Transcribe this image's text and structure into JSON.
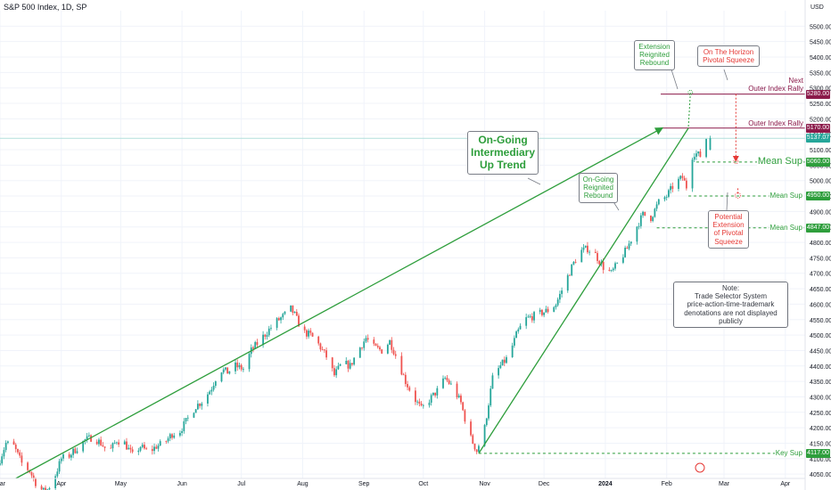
{
  "chart_data": {
    "type": "candlestick",
    "title": "S&P 500 Index, 1D, SP",
    "currency_label": "USD",
    "y_ticks": [
      4050,
      4100,
      4150,
      4200,
      4250,
      4300,
      4350,
      4400,
      4450,
      4500,
      4550,
      4600,
      4650,
      4700,
      4750,
      4800,
      4850,
      4900,
      4950,
      5000,
      5050,
      5100,
      5150,
      5200,
      5250,
      5300,
      5350,
      5400,
      5450,
      5500
    ],
    "ylim": [
      4036,
      5550
    ],
    "x_range_days": [
      0,
      407
    ],
    "x_labels": [
      {
        "label": "Mar",
        "day": 0
      },
      {
        "label": "Apr",
        "day": 31
      },
      {
        "label": "May",
        "day": 61
      },
      {
        "label": "Jun",
        "day": 92
      },
      {
        "label": "Jul",
        "day": 122
      },
      {
        "label": "Aug",
        "day": 153
      },
      {
        "label": "Sep",
        "day": 184
      },
      {
        "label": "Oct",
        "day": 214
      },
      {
        "label": "Nov",
        "day": 245
      },
      {
        "label": "Dec",
        "day": 275
      },
      {
        "label": "2024",
        "day": 306
      },
      {
        "label": "Feb",
        "day": 337
      },
      {
        "label": "Mar",
        "day": 366
      },
      {
        "label": "Apr",
        "day": 397
      }
    ],
    "current_price": 5137.07,
    "levels": [
      {
        "price": 5280.0,
        "label": "Next\nOuter Index Rally",
        "tag": "5280.00",
        "color": "#8b1a4a",
        "style": "solid",
        "from_day": 334
      },
      {
        "price": 5170.0,
        "label": "Outer Index Rally",
        "tag": "5170.00",
        "color": "#8b1a4a",
        "style": "solid",
        "from_day": 334
      },
      {
        "price": 5060.0,
        "label": "Mean Sup",
        "tag": "5060.00",
        "color": "#2e9e3c",
        "style": "dashed",
        "from_day": 352
      },
      {
        "price": 4950.0,
        "label": "Mean Sup",
        "tag": "4950.00",
        "color": "#2e9e3c",
        "style": "dashed",
        "from_day": 348
      },
      {
        "price": 4847.0,
        "label": "Mean Sup",
        "tag": "4847.00",
        "color": "#2e9e3c",
        "style": "dashed",
        "from_day": 332
      },
      {
        "price": 4117.0,
        "label": "Key Sup",
        "tag": "4117.00",
        "color": "#2e9e3c",
        "style": "dashed",
        "from_day": 242
      }
    ],
    "trend_lines": [
      {
        "name": "On-Going Intermediary Up Trend",
        "from": [
          8,
          4036
        ],
        "to": [
          335,
          5171
        ],
        "color": "#2e9e3c",
        "arrow": true
      },
      {
        "name": "On-Going Reignited Rebound",
        "from": [
          242,
          4117
        ],
        "to": [
          348,
          5170
        ],
        "color": "#2e9e3c",
        "arrow": false
      }
    ],
    "projections": [
      {
        "name": "extension",
        "from": [
          348,
          5175
        ],
        "to": [
          349,
          5285
        ],
        "color": "#2e9e3c"
      },
      {
        "name": "pivotal-squeeze-drop",
        "from": [
          372,
          5280
        ],
        "to": [
          372,
          5062
        ],
        "color": "#e53935"
      },
      {
        "name": "pivotal-squeeze-extension",
        "from": [
          373,
          4975
        ],
        "to": [
          373,
          4952
        ],
        "color": "#e53935"
      }
    ],
    "anchors": [
      [
        0,
        4080
      ],
      [
        4,
        4150
      ],
      [
        8,
        4140
      ],
      [
        12,
        4085
      ],
      [
        16,
        4060
      ],
      [
        20,
        4010
      ],
      [
        24,
        3990
      ],
      [
        28,
        4030
      ],
      [
        32,
        4100
      ],
      [
        36,
        4110
      ],
      [
        40,
        4135
      ],
      [
        44,
        4160
      ],
      [
        48,
        4170
      ],
      [
        52,
        4150
      ],
      [
        56,
        4120
      ],
      [
        60,
        4160
      ],
      [
        64,
        4150
      ],
      [
        68,
        4110
      ],
      [
        72,
        4140
      ],
      [
        76,
        4120
      ],
      [
        80,
        4140
      ],
      [
        84,
        4150
      ],
      [
        88,
        4180
      ],
      [
        92,
        4190
      ],
      [
        96,
        4230
      ],
      [
        100,
        4270
      ],
      [
        104,
        4290
      ],
      [
        108,
        4330
      ],
      [
        112,
        4390
      ],
      [
        116,
        4380
      ],
      [
        120,
        4400
      ],
      [
        124,
        4390
      ],
      [
        128,
        4450
      ],
      [
        132,
        4480
      ],
      [
        136,
        4510
      ],
      [
        140,
        4540
      ],
      [
        144,
        4560
      ],
      [
        148,
        4585
      ],
      [
        150,
        4565
      ],
      [
        154,
        4510
      ],
      [
        158,
        4500
      ],
      [
        162,
        4470
      ],
      [
        166,
        4430
      ],
      [
        170,
        4370
      ],
      [
        174,
        4410
      ],
      [
        178,
        4400
      ],
      [
        182,
        4450
      ],
      [
        186,
        4490
      ],
      [
        190,
        4460
      ],
      [
        194,
        4450
      ],
      [
        198,
        4480
      ],
      [
        202,
        4420
      ],
      [
        206,
        4350
      ],
      [
        210,
        4300
      ],
      [
        214,
        4260
      ],
      [
        218,
        4290
      ],
      [
        222,
        4320
      ],
      [
        226,
        4360
      ],
      [
        230,
        4330
      ],
      [
        234,
        4280
      ],
      [
        238,
        4180
      ],
      [
        242,
        4125
      ],
      [
        246,
        4200
      ],
      [
        250,
        4360
      ],
      [
        254,
        4400
      ],
      [
        258,
        4430
      ],
      [
        262,
        4500
      ],
      [
        266,
        4550
      ],
      [
        270,
        4560
      ],
      [
        274,
        4570
      ],
      [
        278,
        4580
      ],
      [
        282,
        4600
      ],
      [
        286,
        4660
      ],
      [
        290,
        4720
      ],
      [
        294,
        4770
      ],
      [
        298,
        4780
      ],
      [
        302,
        4760
      ],
      [
        306,
        4720
      ],
      [
        310,
        4700
      ],
      [
        314,
        4740
      ],
      [
        318,
        4780
      ],
      [
        322,
        4840
      ],
      [
        326,
        4890
      ],
      [
        330,
        4880
      ],
      [
        334,
        4930
      ],
      [
        338,
        4950
      ],
      [
        342,
        4990
      ],
      [
        346,
        5010
      ],
      [
        348,
        4980
      ],
      [
        350,
        5070
      ],
      [
        352,
        5090
      ],
      [
        355,
        5080
      ],
      [
        358,
        5137.07
      ]
    ],
    "seed": 7
  },
  "annotations": {
    "main_trend": "On-Going\nIntermediary\nUp Trend",
    "reignited": "On-Going\nReignited\nRebound",
    "extension": "Extension\nReignited\nRebound",
    "horizon": "On The Horizon\nPivotal Squeeze",
    "potential": "Potential\nExtension\nof Pivotal\nSqueeze",
    "note": "Note:\nTrade Selector System\nprice-action-time-trademark\ndenotations are not displayed publicly"
  },
  "colors": {
    "up": "#26a69a",
    "down": "#ef5350",
    "green": "#2e9e3c",
    "red": "#e53935",
    "maroon": "#8b1a4a",
    "grid": "#f0f3fa",
    "axis_text": "#131722",
    "current": "#26a69a"
  }
}
